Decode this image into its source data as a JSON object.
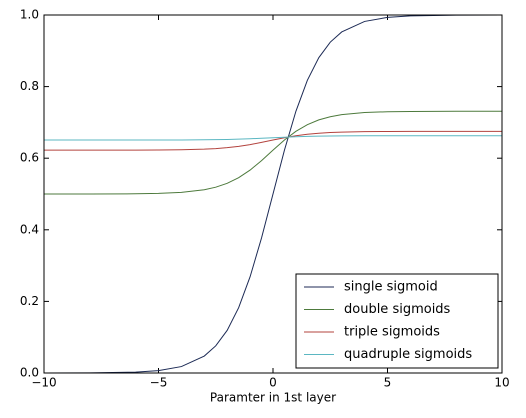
{
  "chart_data": {
    "type": "line",
    "xlabel": "Paramter in 1st layer",
    "x": [
      -10,
      -8,
      -6,
      -5,
      -4,
      -3,
      -2.5,
      -2,
      -1.5,
      -1,
      -0.5,
      0,
      0.5,
      1,
      1.5,
      2,
      2.5,
      3,
      4,
      5,
      6,
      8,
      10
    ],
    "series": [
      {
        "name": "single sigmoid",
        "color": "#1c2a55",
        "values": [
          5e-05,
          0.0003,
          0.0025,
          0.0067,
          0.018,
          0.0474,
          0.0759,
          0.1192,
          0.1824,
          0.2689,
          0.3775,
          0.5,
          0.6225,
          0.7311,
          0.8176,
          0.8808,
          0.9241,
          0.9526,
          0.982,
          0.9933,
          0.9975,
          0.9997,
          1.0
        ]
      },
      {
        "name": "double sigmoids",
        "color": "#4d7a3c",
        "values": [
          0.5,
          0.5001,
          0.5006,
          0.5017,
          0.5045,
          0.5118,
          0.519,
          0.5298,
          0.5455,
          0.5668,
          0.5933,
          0.6225,
          0.6508,
          0.675,
          0.6937,
          0.707,
          0.7159,
          0.7217,
          0.7275,
          0.7298,
          0.7306,
          0.731,
          0.7311
        ]
      },
      {
        "name": "triple sigmoids",
        "color": "#b3433e",
        "values": [
          0.6225,
          0.6225,
          0.6226,
          0.6229,
          0.6235,
          0.6252,
          0.6269,
          0.6294,
          0.6331,
          0.638,
          0.6441,
          0.6508,
          0.6572,
          0.6626,
          0.6668,
          0.6697,
          0.6717,
          0.6729,
          0.6742,
          0.6747,
          0.6749,
          0.675,
          0.675
        ]
      },
      {
        "name": "quadruple sigmoids",
        "color": "#5bb7c2",
        "values": [
          0.6508,
          0.6508,
          0.6508,
          0.6509,
          0.651,
          0.6514,
          0.6518,
          0.6524,
          0.6532,
          0.6543,
          0.6557,
          0.6572,
          0.6587,
          0.6599,
          0.6609,
          0.6616,
          0.662,
          0.6623,
          0.6626,
          0.6627,
          0.6627,
          0.6628,
          0.6628
        ]
      }
    ],
    "xlim": [
      -10,
      10
    ],
    "xticks": [
      {
        "value": -10,
        "label": "−10"
      },
      {
        "value": -5,
        "label": "−5"
      },
      0,
      5,
      10
    ],
    "ylim": [
      0,
      1
    ],
    "yticks": [
      {
        "value": 0,
        "label": "0.0"
      },
      0.2,
      0.4,
      0.6,
      0.8,
      {
        "value": 1,
        "label": "1.0"
      }
    ],
    "legend": "lower right"
  }
}
